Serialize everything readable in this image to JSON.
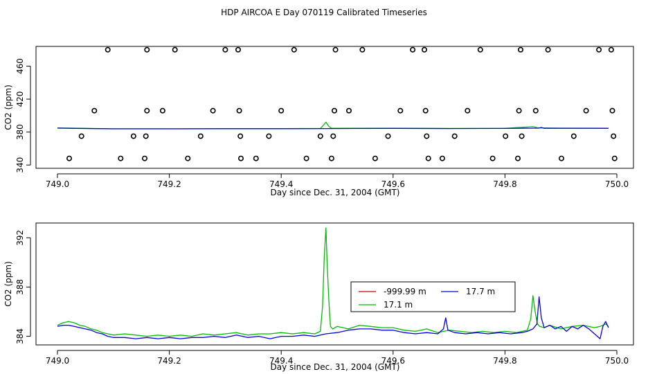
{
  "figure": {
    "title": "HDP AIRCOA E  Day 070119  Calibrated Timeseries"
  },
  "chart_data": [
    {
      "type": "scatter",
      "xlabel": "Day since Dec. 31, 2004 (GMT)",
      "ylabel": "CO2 (ppm)",
      "xlim": [
        749.0,
        750.0
      ],
      "ylim": [
        336,
        484
      ],
      "xticks": [
        "749.0",
        "749.2",
        "749.4",
        "749.6",
        "749.8",
        "750.0"
      ],
      "yticks": [
        "340",
        "380",
        "420",
        "460"
      ],
      "points": [
        [
          749.021,
          348
        ],
        [
          749.043,
          375
        ],
        [
          749.066,
          406
        ],
        [
          749.09,
          480
        ],
        [
          749.113,
          348
        ],
        [
          749.136,
          375
        ],
        [
          749.158,
          375
        ],
        [
          749.16,
          406
        ],
        [
          749.16,
          480
        ],
        [
          749.156,
          348
        ],
        [
          749.188,
          406
        ],
        [
          749.21,
          480
        ],
        [
          749.233,
          348
        ],
        [
          749.256,
          375
        ],
        [
          749.278,
          406
        ],
        [
          749.3,
          480
        ],
        [
          749.323,
          480
        ],
        [
          749.325,
          406
        ],
        [
          749.327,
          375
        ],
        [
          749.328,
          348
        ],
        [
          749.355,
          348
        ],
        [
          749.378,
          375
        ],
        [
          749.4,
          406
        ],
        [
          749.423,
          480
        ],
        [
          749.445,
          348
        ],
        [
          749.47,
          375
        ],
        [
          749.49,
          348
        ],
        [
          749.493,
          375
        ],
        [
          749.495,
          406
        ],
        [
          749.497,
          480
        ],
        [
          749.521,
          406
        ],
        [
          749.545,
          480
        ],
        [
          749.568,
          348
        ],
        [
          749.591,
          375
        ],
        [
          749.613,
          406
        ],
        [
          749.635,
          480
        ],
        [
          749.656,
          480
        ],
        [
          749.658,
          406
        ],
        [
          749.66,
          375
        ],
        [
          749.663,
          348
        ],
        [
          749.688,
          348
        ],
        [
          749.71,
          375
        ],
        [
          749.733,
          406
        ],
        [
          749.756,
          480
        ],
        [
          749.778,
          348
        ],
        [
          749.801,
          375
        ],
        [
          749.823,
          348
        ],
        [
          749.825,
          406
        ],
        [
          749.828,
          480
        ],
        [
          749.83,
          375
        ],
        [
          749.855,
          406
        ],
        [
          749.877,
          480
        ],
        [
          749.901,
          348
        ],
        [
          749.923,
          375
        ],
        [
          749.945,
          406
        ],
        [
          749.968,
          480
        ],
        [
          749.99,
          480
        ],
        [
          749.992,
          406
        ],
        [
          749.994,
          375
        ],
        [
          749.996,
          348
        ]
      ],
      "series": [
        {
          "name": "17.1 m",
          "color": "#00bb00",
          "x": [
            749.0,
            749.1,
            749.2,
            749.3,
            749.4,
            749.47,
            749.475,
            749.48,
            749.485,
            749.49,
            749.6,
            749.7,
            749.8,
            749.85,
            749.86,
            749.9,
            749.985
          ],
          "y": [
            385.0,
            384.0,
            384.0,
            384.2,
            384.2,
            384.4,
            388.0,
            392.0,
            387.0,
            384.6,
            384.6,
            384.4,
            384.5,
            386.5,
            385.0,
            384.8,
            384.7
          ]
        },
        {
          "name": "17.7 m",
          "color": "#0000dd",
          "x": [
            749.0,
            749.1,
            749.2,
            749.3,
            749.4,
            749.5,
            749.6,
            749.7,
            749.8,
            749.86,
            749.865,
            749.87,
            749.9,
            749.985
          ],
          "y": [
            384.8,
            383.9,
            383.9,
            384.0,
            384.0,
            384.3,
            384.5,
            384.3,
            384.4,
            384.8,
            385.6,
            384.6,
            384.6,
            384.6
          ]
        }
      ]
    },
    {
      "type": "line",
      "xlabel": "Day since Dec. 31, 2004 (GMT)",
      "ylabel": "CO2 (ppm)",
      "xlim": [
        749.0,
        750.0
      ],
      "ylim": [
        383.3,
        393.2
      ],
      "xticks": [
        "749.0",
        "749.2",
        "749.4",
        "749.6",
        "749.8",
        "750.0"
      ],
      "yticks": [
        "384",
        "388",
        "392"
      ],
      "legend": {
        "placement": "center-right",
        "entries": [
          {
            "name": "-999.99 m",
            "color": "#cc0000"
          },
          {
            "name": "17.7 m",
            "color": "#0000dd"
          },
          {
            "name": "17.1 m",
            "color": "#00bb00"
          }
        ]
      },
      "series": [
        {
          "name": "17.1 m",
          "color": "#00bb00",
          "x": [
            749.0,
            749.01,
            749.02,
            749.03,
            749.04,
            749.05,
            749.06,
            749.07,
            749.08,
            749.09,
            749.1,
            749.12,
            749.14,
            749.16,
            749.18,
            749.2,
            749.22,
            749.24,
            749.26,
            749.28,
            749.3,
            749.32,
            749.34,
            749.36,
            749.38,
            749.4,
            749.42,
            749.44,
            749.46,
            749.47,
            749.474,
            749.477,
            749.48,
            749.482,
            749.485,
            749.488,
            749.492,
            749.5,
            749.52,
            749.54,
            749.56,
            749.58,
            749.6,
            749.62,
            749.64,
            749.66,
            749.68,
            749.7,
            749.72,
            749.74,
            749.76,
            749.78,
            749.8,
            749.82,
            749.84,
            749.846,
            749.85,
            749.854,
            749.858,
            749.862,
            749.87,
            749.88,
            749.9,
            749.92,
            749.94,
            749.96,
            749.97,
            749.98,
            749.985
          ],
          "y": [
            384.9,
            385.1,
            385.2,
            385.1,
            384.9,
            384.8,
            384.6,
            384.5,
            384.3,
            384.2,
            384.1,
            384.2,
            384.1,
            384.0,
            384.1,
            384.0,
            384.1,
            384.0,
            384.2,
            384.1,
            384.2,
            384.3,
            384.1,
            384.2,
            384.2,
            384.3,
            384.2,
            384.3,
            384.2,
            384.4,
            386.5,
            390.5,
            392.8,
            390.0,
            387.0,
            384.8,
            384.6,
            384.8,
            384.6,
            384.9,
            384.8,
            384.7,
            384.7,
            384.5,
            384.4,
            384.6,
            384.3,
            384.5,
            384.4,
            384.3,
            384.4,
            384.3,
            384.4,
            384.3,
            384.5,
            385.4,
            387.3,
            386.0,
            385.0,
            384.8,
            384.7,
            384.9,
            384.6,
            384.8,
            384.9,
            384.7,
            384.8,
            385.0,
            384.8
          ]
        },
        {
          "name": "17.7 m",
          "color": "#0000dd",
          "x": [
            749.0,
            749.01,
            749.02,
            749.03,
            749.04,
            749.05,
            749.06,
            749.07,
            749.08,
            749.09,
            749.1,
            749.12,
            749.14,
            749.16,
            749.18,
            749.2,
            749.22,
            749.24,
            749.26,
            749.28,
            749.3,
            749.32,
            749.34,
            749.36,
            749.38,
            749.4,
            749.42,
            749.44,
            749.46,
            749.48,
            749.5,
            749.52,
            749.54,
            749.56,
            749.58,
            749.6,
            749.62,
            749.64,
            749.66,
            749.68,
            749.69,
            749.694,
            749.698,
            749.71,
            749.73,
            749.75,
            749.77,
            749.79,
            749.81,
            749.83,
            749.84,
            749.85,
            749.857,
            749.861,
            749.865,
            749.87,
            749.88,
            749.89,
            749.9,
            749.91,
            749.92,
            749.93,
            749.94,
            749.95,
            749.96,
            749.97,
            749.975,
            749.98,
            749.985
          ],
          "y": [
            384.8,
            384.9,
            384.9,
            384.8,
            384.7,
            384.6,
            384.5,
            384.3,
            384.2,
            384.0,
            383.9,
            383.9,
            383.8,
            383.9,
            383.8,
            383.9,
            383.8,
            383.9,
            383.9,
            384.0,
            383.9,
            384.1,
            383.9,
            384.0,
            383.8,
            384.0,
            384.0,
            384.1,
            384.0,
            384.2,
            384.3,
            384.5,
            384.6,
            384.6,
            384.5,
            384.5,
            384.3,
            384.2,
            384.3,
            384.2,
            384.6,
            385.5,
            384.5,
            384.3,
            384.2,
            384.3,
            384.2,
            384.3,
            384.2,
            384.3,
            384.4,
            384.6,
            385.0,
            387.2,
            385.5,
            384.7,
            384.9,
            384.6,
            384.8,
            384.4,
            384.8,
            384.6,
            384.9,
            384.6,
            384.2,
            383.8,
            384.8,
            385.2,
            384.7
          ]
        }
      ]
    }
  ]
}
